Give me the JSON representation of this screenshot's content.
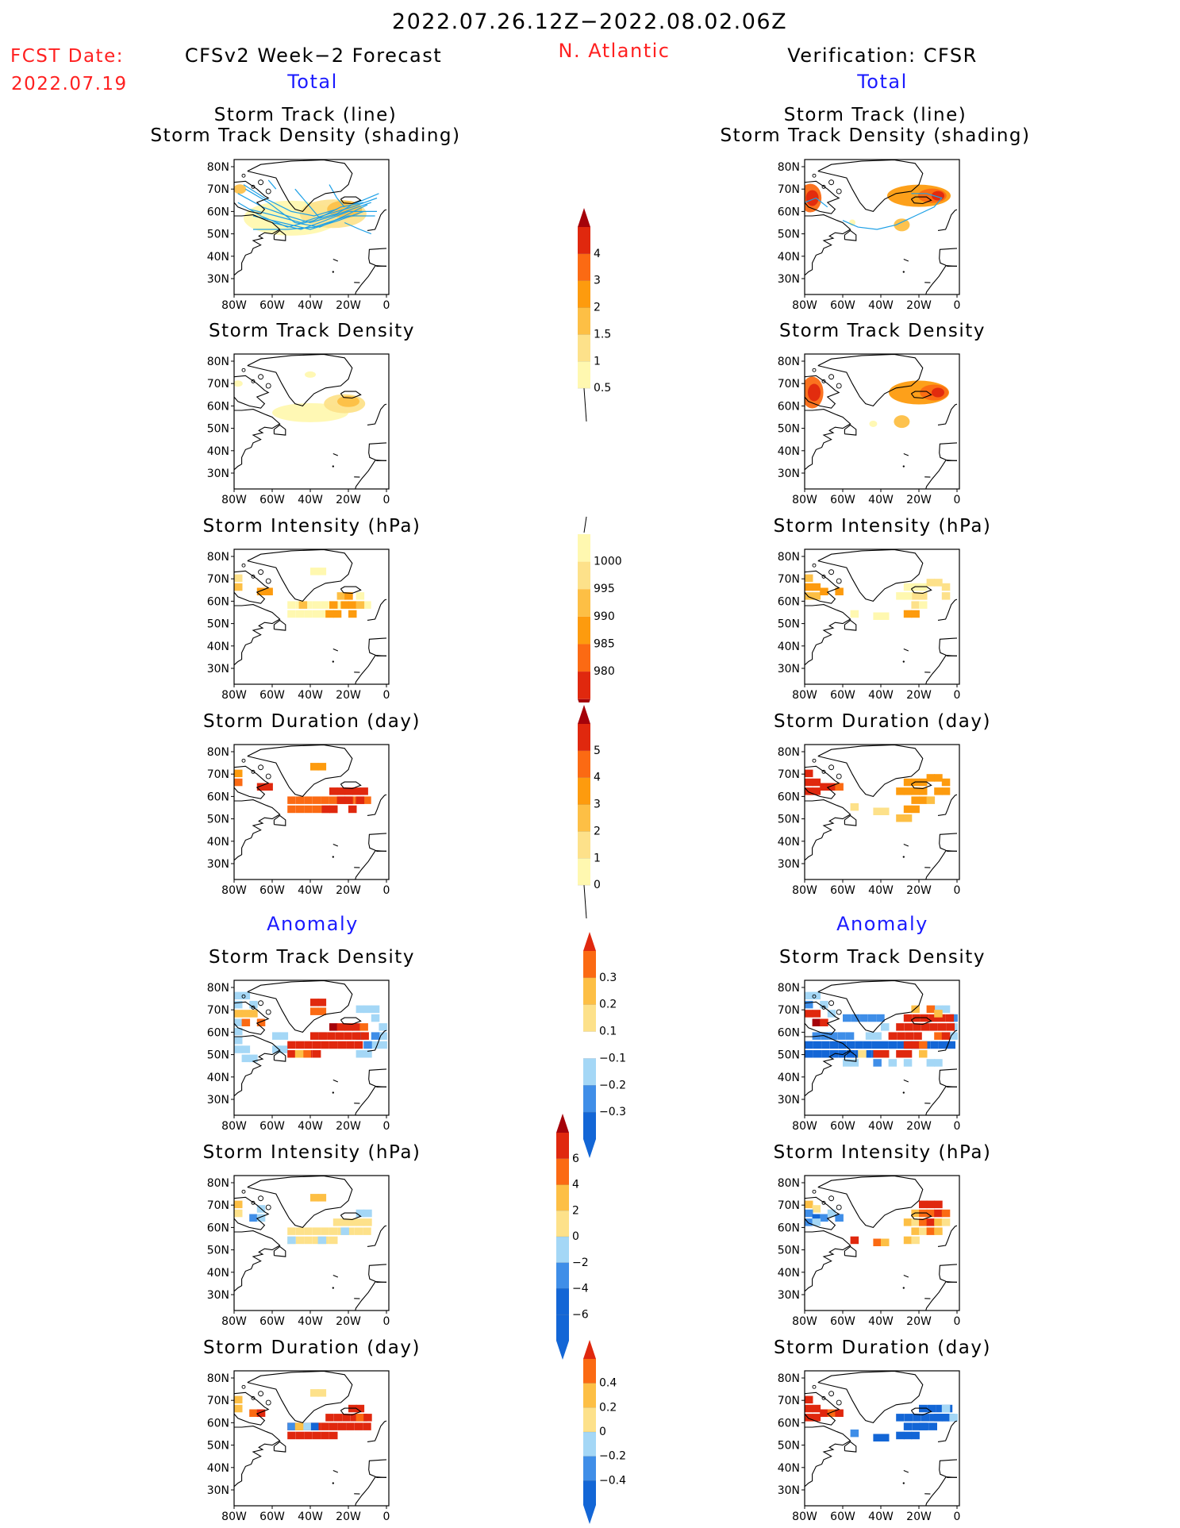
{
  "header": {
    "period": "2022.07.26.12Z−2022.08.02.06Z",
    "fcst_label": "FCST Date:",
    "fcst_date": "2022.07.19",
    "left_title": "CFSv2 Week−2 Forecast",
    "region": "N. Atlantic",
    "right_title": "Verification: CFSR"
  },
  "sections": {
    "total_label": "Total",
    "anomaly_label": "Anomaly"
  },
  "panel_titles": {
    "track_line": "Storm Track (line)",
    "track_density_shading": "Storm Track Density (shading)",
    "density": "Storm Track Density",
    "intensity": "Storm Intensity (hPa)",
    "duration": "Storm Duration (day)"
  },
  "axes": {
    "lat_labels": [
      "80N",
      "70N",
      "60N",
      "50N",
      "40N",
      "30N"
    ],
    "lon_labels": [
      "80W",
      "60W",
      "40W",
      "20W",
      "0"
    ]
  },
  "colorbars": {
    "density_total": [
      "0.5",
      "1",
      "1.5",
      "2",
      "3",
      "4"
    ],
    "intensity_total": [
      "1000",
      "995",
      "990",
      "985",
      "980"
    ],
    "duration_total": [
      "0",
      "1",
      "2",
      "3",
      "4",
      "5"
    ],
    "density_anom": [
      "0.3",
      "0.2",
      "0.1",
      "−0.1",
      "−0.2",
      "−0.3"
    ],
    "intensity_anom": [
      "6",
      "4",
      "2",
      "0",
      "−2",
      "−4",
      "−6"
    ],
    "duration_anom": [
      "0.4",
      "0.2",
      "0",
      "−0.2",
      "−0.4"
    ]
  },
  "colors": {
    "title_red": "#ff2020",
    "label_blue": "#1a1aff",
    "warm_scale": [
      "#fff8b0",
      "#fde18a",
      "#fdbf45",
      "#fd9b0e",
      "#fb6a13",
      "#e0280e",
      "#a5020a"
    ],
    "div_scale": [
      "#1366d6",
      "#3f8ee8",
      "#a4d7f6",
      "#ffffff",
      "#fde18a",
      "#fdbf45",
      "#fb6a13",
      "#e0280e",
      "#a5020a"
    ],
    "track_line": "#1ea0e6"
  }
}
